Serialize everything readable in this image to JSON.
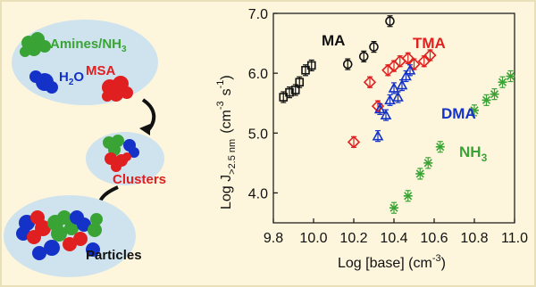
{
  "schematic": {
    "amines_label": "Amines/NH",
    "amines_sub": "3",
    "water_label": "H",
    "water_sub": "2",
    "water_tail": "O",
    "msa_label": "MSA",
    "clusters_label": "Clusters",
    "particles_label": "Particles",
    "colors": {
      "amine": "#3aa335",
      "water": "#1432c8",
      "msa": "#e02020",
      "blob": "#cfe3ee"
    }
  },
  "chart_data": {
    "type": "scatter",
    "xlabel_main": "Log [base] (cm",
    "xlabel_sup": "-3",
    "xlabel_close": ")",
    "ylabel_main": "Log J",
    "ylabel_sub": ">2.5 nm",
    "ylabel_unit": "(cm",
    "ylabel_sup1": "-3",
    "ylabel_s": "s",
    "ylabel_sup2": "-1",
    "ylabel_close": ")",
    "xlim": [
      9.8,
      11.0
    ],
    "ylim": [
      3.5,
      7.0
    ],
    "xticks": [
      "9.8",
      "10.0",
      "10.2",
      "10.4",
      "10.6",
      "10.8",
      "11.0"
    ],
    "yticks": [
      "4.0",
      "5.0",
      "6.0",
      "7.0"
    ],
    "series": [
      {
        "name": "MA",
        "color": "#111111",
        "marker": "square",
        "points": [
          [
            9.85,
            5.6
          ],
          [
            9.88,
            5.68
          ],
          [
            9.91,
            5.72
          ],
          [
            9.93,
            5.85
          ],
          [
            9.96,
            6.05
          ],
          [
            9.99,
            6.13
          ]
        ]
      },
      {
        "name": "MA",
        "color": "#111111",
        "marker": "circle",
        "labelled": false,
        "points": [
          [
            10.17,
            6.15
          ],
          [
            10.25,
            6.28
          ],
          [
            10.3,
            6.44
          ],
          [
            10.38,
            6.87
          ]
        ]
      },
      {
        "name": "TMA",
        "color": "#e02020",
        "marker": "diamond",
        "points": [
          [
            10.2,
            4.85
          ],
          [
            10.28,
            5.85
          ],
          [
            10.32,
            5.45
          ],
          [
            10.37,
            6.05
          ],
          [
            10.4,
            6.12
          ],
          [
            10.43,
            6.2
          ],
          [
            10.47,
            6.25
          ],
          [
            10.5,
            6.15
          ],
          [
            10.55,
            6.2
          ],
          [
            10.58,
            6.3
          ]
        ]
      },
      {
        "name": "DMA",
        "color": "#1432c8",
        "marker": "triangle",
        "points": [
          [
            10.32,
            4.95
          ],
          [
            10.33,
            5.4
          ],
          [
            10.36,
            5.3
          ],
          [
            10.38,
            5.55
          ],
          [
            10.4,
            5.75
          ],
          [
            10.42,
            5.6
          ],
          [
            10.44,
            5.8
          ],
          [
            10.46,
            5.95
          ],
          [
            10.48,
            6.05
          ]
        ]
      },
      {
        "name": "NH3",
        "label_main": "NH",
        "label_sub": "3",
        "color": "#3aa335",
        "marker": "star",
        "points": [
          [
            10.4,
            3.75
          ],
          [
            10.47,
            3.95
          ],
          [
            10.53,
            4.32
          ],
          [
            10.57,
            4.5
          ],
          [
            10.63,
            4.77
          ],
          [
            10.8,
            5.38
          ],
          [
            10.86,
            5.55
          ],
          [
            10.9,
            5.65
          ],
          [
            10.94,
            5.85
          ],
          [
            10.98,
            5.95
          ]
        ]
      }
    ],
    "grid": false
  }
}
